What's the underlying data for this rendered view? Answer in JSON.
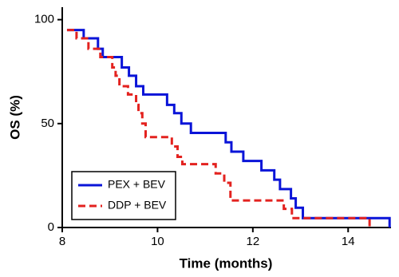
{
  "chart_data": {
    "type": "step",
    "x_label": "Time (months)",
    "y_label": "OS (%)",
    "xlim": [
      8,
      14.9
    ],
    "ylim": [
      0,
      106
    ],
    "xticks": [
      8,
      10,
      12,
      14
    ],
    "yticks": [
      0,
      50,
      100
    ],
    "legend": "lower left",
    "series": [
      {
        "name": "PEX + BEV",
        "color": "#0a14d8",
        "dash": false,
        "x": [
          8.1,
          8.45,
          8.75,
          8.85,
          9.25,
          9.4,
          9.55,
          9.7,
          10.2,
          10.35,
          10.5,
          10.7,
          11.43,
          11.55,
          11.8,
          12.18,
          12.45,
          12.57,
          12.8,
          12.9,
          13.05,
          14.87
        ],
        "values": [
          95,
          91,
          86,
          82,
          77,
          73,
          68,
          64,
          59,
          55,
          50,
          45.5,
          41,
          36.5,
          32,
          27.5,
          23,
          18.5,
          14,
          9.5,
          4.5,
          0
        ]
      },
      {
        "name": "DDP + BEV",
        "color": "#e3221f",
        "dash": true,
        "x": [
          8.1,
          8.3,
          8.55,
          8.8,
          9.05,
          9.12,
          9.2,
          9.38,
          9.55,
          9.6,
          9.68,
          9.75,
          10.3,
          10.42,
          10.52,
          11.22,
          11.4,
          11.53,
          12.65,
          12.82,
          14.45
        ],
        "values": [
          95,
          91,
          86,
          82,
          77,
          73,
          68,
          64,
          59,
          55,
          50,
          43.5,
          39,
          34,
          30.5,
          26,
          21.5,
          13,
          9,
          4.5,
          0
        ]
      }
    ]
  }
}
